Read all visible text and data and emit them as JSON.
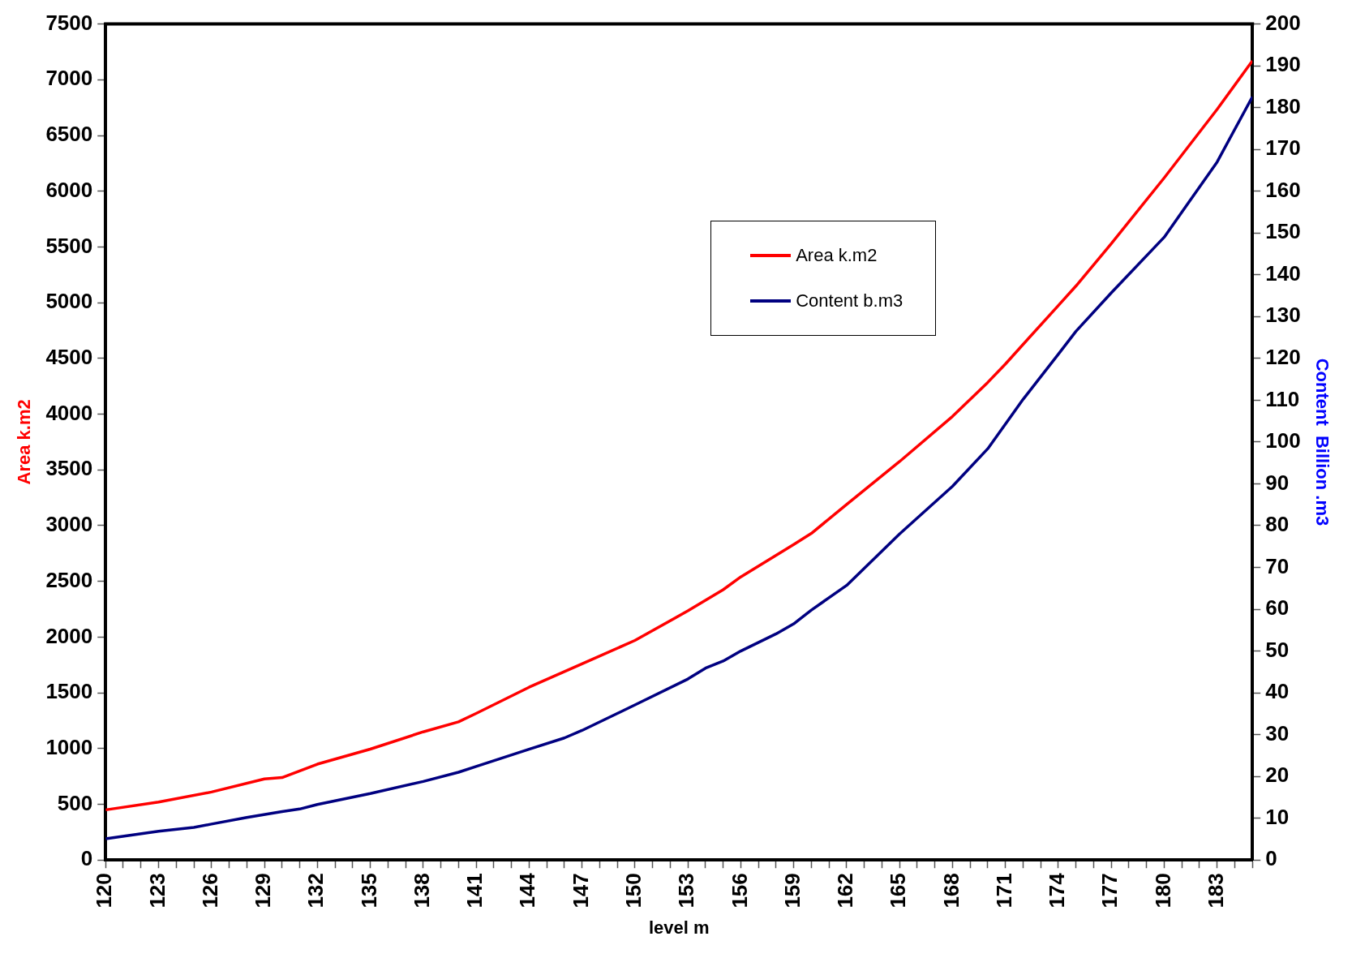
{
  "chart_data": {
    "type": "line",
    "xlabel": "level m",
    "ylabel": "Area k.m2",
    "y2label": "Content  Billion .m3",
    "legend": "top right",
    "xlim": [
      120,
      185
    ],
    "xticks": [
      120,
      {
        "value": 121,
        "label": null
      },
      {
        "value": 122,
        "label": null
      },
      123,
      {
        "value": 124,
        "label": null
      },
      {
        "value": 125,
        "label": null
      },
      126,
      {
        "value": 127,
        "label": null
      },
      {
        "value": 128,
        "label": null
      },
      129,
      {
        "value": 130,
        "label": null
      },
      {
        "value": 131,
        "label": null
      },
      132,
      {
        "value": 133,
        "label": null
      },
      {
        "value": 134,
        "label": null
      },
      135,
      {
        "value": 136,
        "label": null
      },
      {
        "value": 137,
        "label": null
      },
      138,
      {
        "value": 139,
        "label": null
      },
      {
        "value": 140,
        "label": null
      },
      141,
      {
        "value": 142,
        "label": null
      },
      {
        "value": 143,
        "label": null
      },
      144,
      {
        "value": 145,
        "label": null
      },
      {
        "value": 146,
        "label": null
      },
      147,
      {
        "value": 148,
        "label": null
      },
      {
        "value": 149,
        "label": null
      },
      150,
      {
        "value": 151,
        "label": null
      },
      {
        "value": 152,
        "label": null
      },
      153,
      {
        "value": 154,
        "label": null
      },
      {
        "value": 155,
        "label": null
      },
      156,
      {
        "value": 157,
        "label": null
      },
      {
        "value": 158,
        "label": null
      },
      159,
      {
        "value": 160,
        "label": null
      },
      {
        "value": 161,
        "label": null
      },
      162,
      {
        "value": 163,
        "label": null
      },
      {
        "value": 164,
        "label": null
      },
      165,
      {
        "value": 166,
        "label": null
      },
      {
        "value": 167,
        "label": null
      },
      168,
      {
        "value": 169,
        "label": null
      },
      {
        "value": 170,
        "label": null
      },
      171,
      {
        "value": 172,
        "label": null
      },
      {
        "value": 173,
        "label": null
      },
      174,
      {
        "value": 175,
        "label": null
      },
      {
        "value": 176,
        "label": null
      },
      177,
      {
        "value": 178,
        "label": null
      },
      {
        "value": 179,
        "label": null
      },
      180,
      {
        "value": 181,
        "label": null
      },
      {
        "value": 182,
        "label": null
      },
      183,
      {
        "value": 184,
        "label": null
      },
      {
        "value": 185,
        "label": null
      }
    ],
    "ylim": [
      0,
      7500
    ],
    "yticks": [
      0,
      500,
      1000,
      1500,
      2000,
      2500,
      3000,
      3500,
      4000,
      4500,
      5000,
      5500,
      6000,
      6500,
      7000,
      7500
    ],
    "y2lim": [
      0,
      200
    ],
    "y2ticks": [
      0,
      10,
      20,
      30,
      40,
      50,
      60,
      70,
      80,
      90,
      100,
      110,
      120,
      130,
      140,
      150,
      160,
      170,
      180,
      190,
      200
    ],
    "series": [
      {
        "name": "Area  k.m2",
        "color": "#ff0000",
        "x": [
          120,
          123,
          126,
          129,
          130,
          132,
          135,
          138,
          140,
          141,
          144,
          147,
          150,
          153,
          155,
          156,
          159,
          160,
          162,
          165,
          168,
          170,
          171,
          174,
          175,
          177,
          180,
          183,
          185
        ],
        "values": [
          450,
          520,
          610,
          727,
          740,
          860,
          995,
          1150,
          1240,
          1315,
          1550,
          1760,
          1970,
          2235,
          2425,
          2540,
          2830,
          2930,
          3190,
          3575,
          3980,
          4285,
          4450,
          4975,
          5150,
          5530,
          6120,
          6735,
          7170
        ]
      },
      {
        "name": "Content b.m3",
        "color": "#000080",
        "axis": "y2",
        "x": [
          120,
          123,
          125,
          126,
          128,
          130,
          131,
          132,
          135,
          138,
          140,
          141,
          144,
          146,
          147,
          150,
          153,
          154,
          155,
          156,
          158,
          159,
          160,
          162,
          165,
          168,
          170,
          172,
          174,
          175,
          177,
          180,
          183,
          185
        ],
        "values": [
          5.1,
          6.9,
          7.8,
          8.6,
          10.2,
          11.6,
          12.2,
          13.3,
          15.9,
          18.8,
          21,
          22.4,
          26.5,
          29.2,
          31,
          37.1,
          43.3,
          45.9,
          47.6,
          50,
          54.1,
          56.5,
          59.8,
          65.7,
          78,
          89.4,
          98.4,
          110.2,
          121,
          126.5,
          135.7,
          149,
          167,
          182.6
        ]
      }
    ]
  }
}
